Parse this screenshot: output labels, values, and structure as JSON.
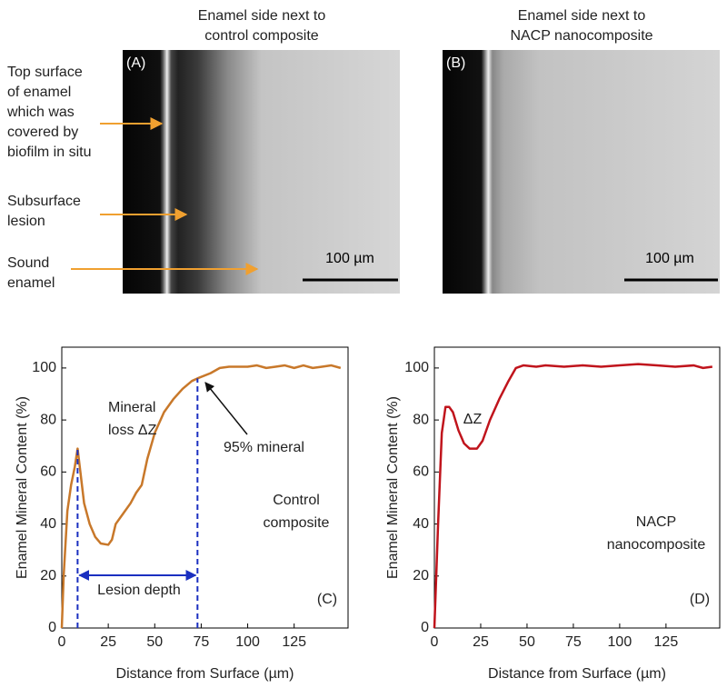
{
  "panels": [
    {
      "title": [
        "Enamel side next to",
        "control composite"
      ],
      "label": "(A)",
      "scale_bar": "100 µm"
    },
    {
      "title": [
        "Enamel side next to",
        "NACP nanocomposite"
      ],
      "label": "(B)",
      "scale_bar": "100 µm"
    }
  ],
  "callouts": [
    [
      "Top surface",
      "of enamel",
      "which was",
      "covered by",
      "biofilm in situ"
    ],
    [
      "Subsurface",
      "lesion"
    ],
    [
      "Sound",
      "enamel"
    ]
  ],
  "chart_data": [
    {
      "type": "line",
      "xlabel": "Distance from Surface (µm)",
      "ylabel": "Enamel Mineral Content  (%)",
      "color": "#c8782a",
      "x": [
        0,
        1,
        3,
        5,
        7,
        8.5,
        10,
        12,
        15,
        18,
        21,
        25,
        27,
        29,
        33,
        37,
        40,
        43,
        46,
        50,
        55,
        60,
        65,
        70,
        73,
        80,
        85,
        90,
        100,
        105,
        110,
        115,
        120,
        125,
        130,
        135,
        140,
        145,
        150
      ],
      "values": [
        0,
        20,
        45,
        55,
        62,
        69,
        60,
        48,
        40,
        35,
        32.5,
        32,
        34,
        40,
        44,
        48,
        52,
        55,
        65,
        75,
        83,
        88,
        92,
        95,
        96,
        98,
        100,
        100.5,
        100.5,
        101,
        100,
        100.5,
        101,
        100,
        101,
        100,
        100.5,
        101,
        100
      ],
      "xlim": [
        0,
        154
      ],
      "ylim": [
        0,
        108
      ],
      "xticks": [
        0,
        25,
        50,
        75,
        100,
        125
      ],
      "yticks": [
        0,
        20,
        40,
        60,
        80,
        100
      ],
      "annotations": [
        "Mineral",
        "loss ΔZ",
        "95% mineral",
        "Control",
        "composite",
        "Lesion depth",
        "(C)"
      ]
    },
    {
      "type": "line",
      "xlabel": "Distance from Surface (µm)",
      "ylabel": "Enamel Mineral Content  (%)",
      "color": "#c0141c",
      "x": [
        0,
        2,
        4,
        6,
        8,
        10,
        13,
        16,
        19,
        23,
        26,
        30,
        35,
        40,
        44,
        48,
        55,
        60,
        70,
        80,
        90,
        100,
        110,
        120,
        130,
        140,
        145,
        150
      ],
      "values": [
        0,
        40,
        75,
        85,
        85,
        83,
        76,
        71,
        69,
        69,
        72,
        80,
        88,
        95,
        100,
        101,
        100.5,
        101,
        100.5,
        101,
        100.5,
        101,
        101.5,
        101,
        100.5,
        101,
        100,
        100.5
      ],
      "xlim": [
        0,
        154
      ],
      "ylim": [
        0,
        108
      ],
      "xticks": [
        0,
        25,
        50,
        75,
        100,
        125
      ],
      "yticks": [
        0,
        20,
        40,
        60,
        80,
        100
      ],
      "annotations": [
        "ΔZ",
        "NACP",
        "nanocomposite",
        "(D)"
      ]
    }
  ]
}
